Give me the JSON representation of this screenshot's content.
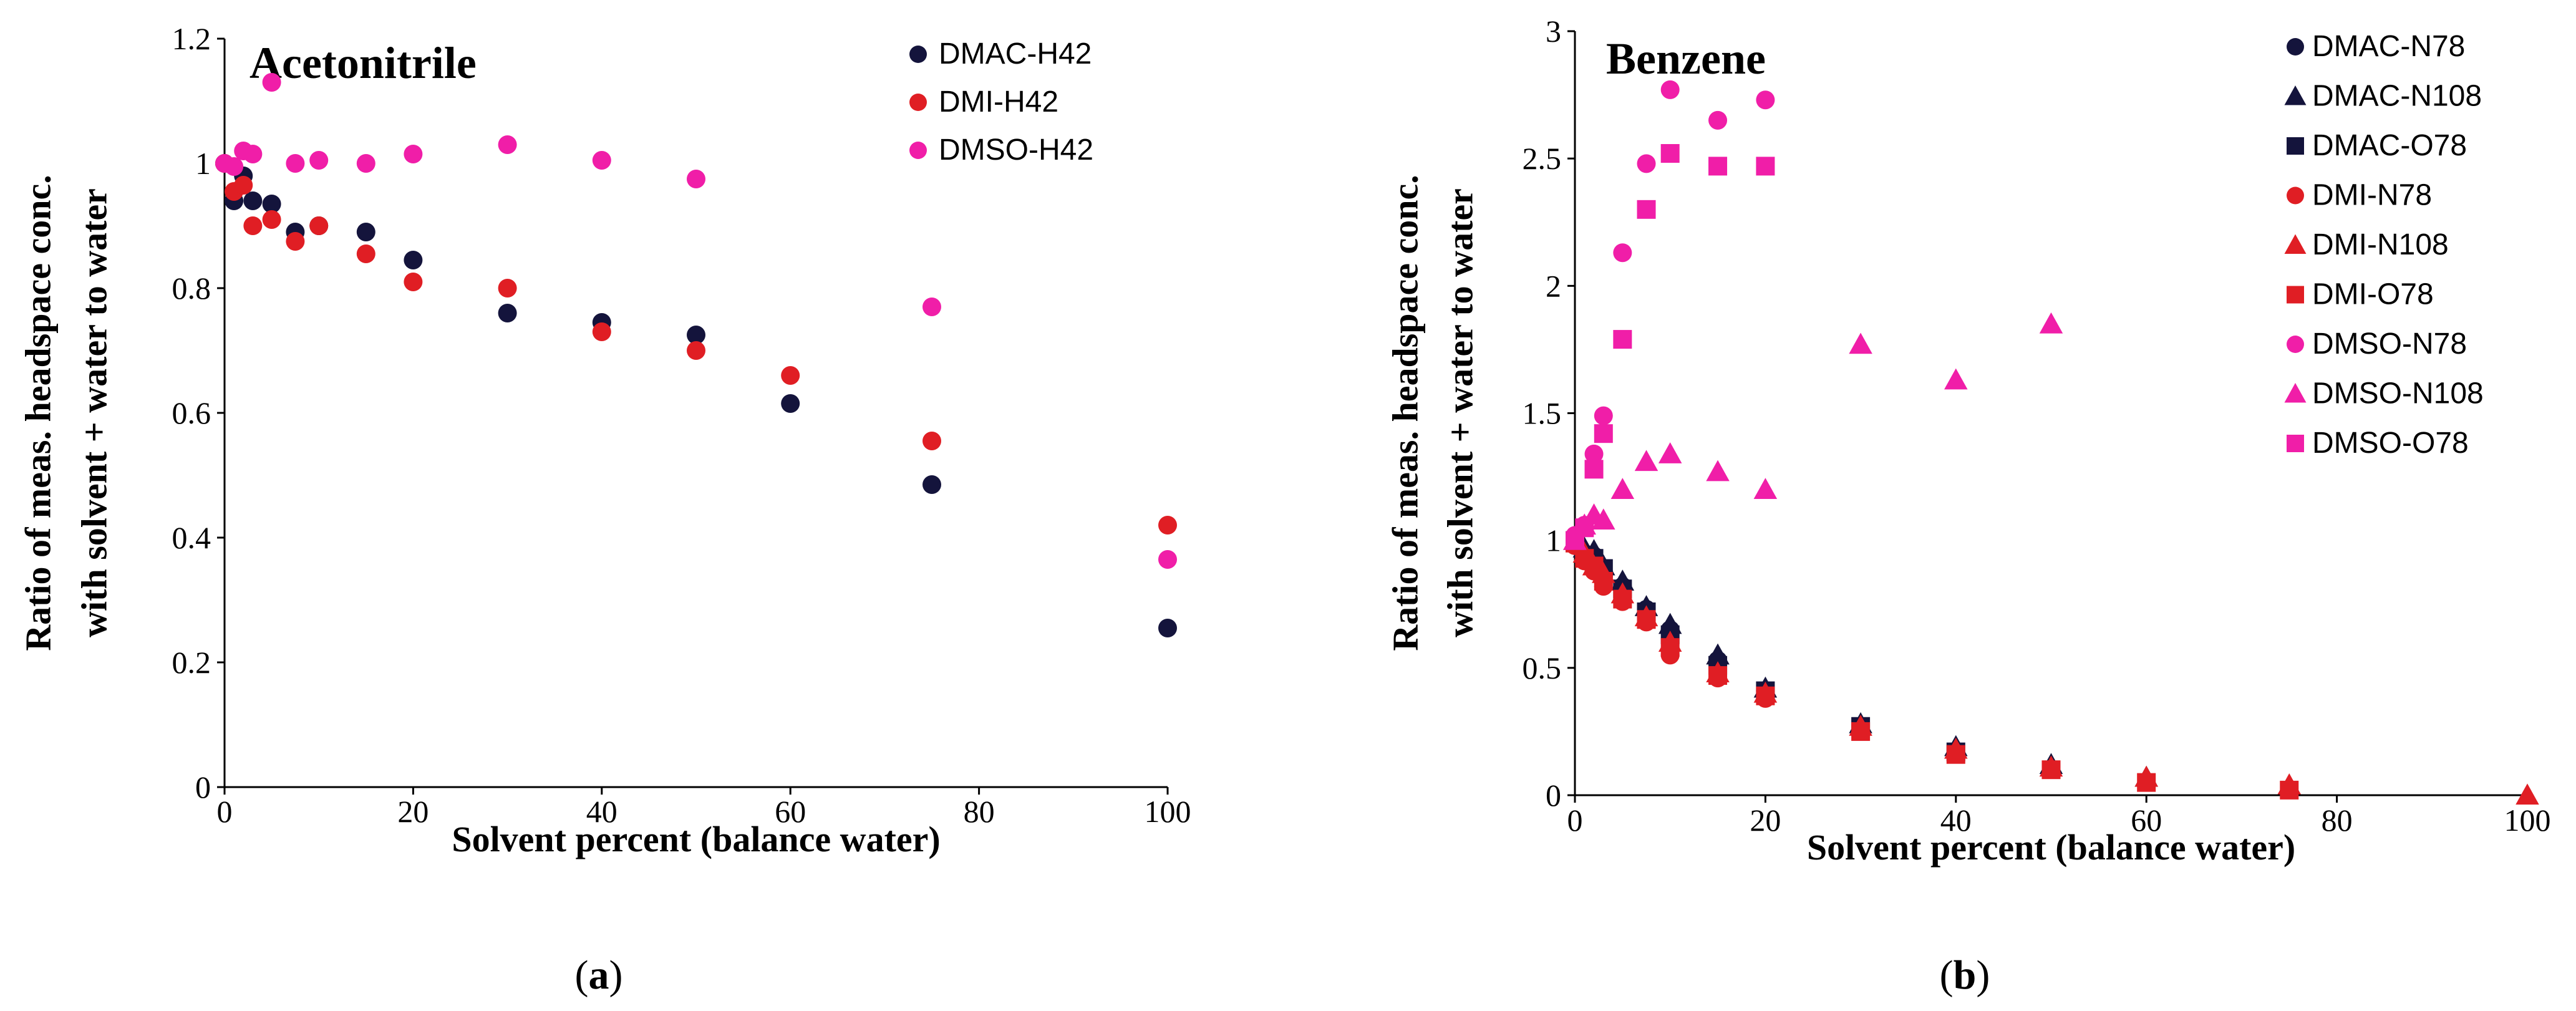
{
  "chart_data": [
    {
      "type": "scatter",
      "panel": "a",
      "title": "Acetonitrile",
      "xlabel": "Solvent percent (balance water)",
      "ylabel": [
        "Ratio of meas. headspace conc.",
        "with solvent + water to water"
      ],
      "xlim": [
        0,
        100
      ],
      "ylim": [
        0,
        1.2
      ],
      "xticks": [
        "0",
        "20",
        "40",
        "60",
        "80",
        "100"
      ],
      "yticks": [
        "0",
        "0.2",
        "0.4",
        "0.6",
        "0.8",
        "1",
        "1.2"
      ],
      "legend_position": "top-right",
      "series": [
        {
          "name": "DMAC-H42",
          "color": "#14143c",
          "marker": "circle",
          "x": [
            0,
            1,
            2,
            3,
            5,
            7.5,
            10,
            15,
            20,
            30,
            40,
            50,
            60,
            75,
            100
          ],
          "y": [
            1.0,
            0.94,
            0.98,
            0.94,
            0.935,
            0.89,
            0.9,
            0.89,
            0.845,
            0.76,
            0.745,
            0.725,
            0.615,
            0.485,
            0.255
          ]
        },
        {
          "name": "DMI-H42",
          "color": "#e01e24",
          "marker": "circle",
          "x": [
            0,
            1,
            2,
            3,
            5,
            7.5,
            10,
            15,
            20,
            30,
            40,
            50,
            60,
            75,
            100
          ],
          "y": [
            1.0,
            0.955,
            0.965,
            0.9,
            0.91,
            0.875,
            0.9,
            0.855,
            0.81,
            0.8,
            0.73,
            0.7,
            0.66,
            0.555,
            0.42
          ]
        },
        {
          "name": "DMSO-H42",
          "color": "#f01ea8",
          "marker": "circle",
          "x": [
            0,
            1,
            2,
            3,
            5,
            7.5,
            10,
            15,
            20,
            30,
            40,
            50,
            75,
            100
          ],
          "y": [
            1.0,
            0.995,
            1.02,
            1.015,
            1.13,
            1.0,
            1.005,
            1.0,
            1.015,
            1.03,
            1.005,
            0.975,
            0.77,
            0.365
          ]
        }
      ]
    },
    {
      "type": "scatter",
      "panel": "b",
      "title": "Benzene",
      "xlabel": "Solvent percent (balance water)",
      "ylabel": [
        "Ratio of meas. headspace conc.",
        "with solvent + water to water"
      ],
      "xlim": [
        0,
        100
      ],
      "ylim": [
        0,
        3
      ],
      "xticks": [
        "0",
        "20",
        "40",
        "60",
        "80",
        "100"
      ],
      "yticks": [
        "0",
        "0.5",
        "1",
        "1.5",
        "2",
        "2.5",
        "3"
      ],
      "legend_position": "top-right",
      "series": [
        {
          "name": "DMAC-N78",
          "color": "#14143c",
          "marker": "circle",
          "x": [
            0,
            1,
            2,
            3,
            5,
            7.5,
            10,
            15,
            20
          ],
          "y": [
            1.0,
            0.95,
            0.94,
            0.88,
            0.82,
            0.73,
            0.65,
            0.53,
            0.41
          ]
        },
        {
          "name": "DMAC-N108",
          "color": "#14143c",
          "marker": "triangle",
          "x": [
            0,
            1,
            2,
            3,
            5,
            7.5,
            10,
            15,
            20,
            30,
            40,
            50,
            60
          ],
          "y": [
            1.0,
            0.97,
            0.96,
            0.9,
            0.84,
            0.74,
            0.67,
            0.55,
            0.42,
            0.28,
            0.19,
            0.12,
            0.07
          ]
        },
        {
          "name": "DMAC-O78",
          "color": "#14143c",
          "marker": "square",
          "x": [
            0,
            1,
            2,
            3,
            5,
            7.5,
            10,
            15,
            20,
            30,
            40
          ],
          "y": [
            1.0,
            0.94,
            0.93,
            0.89,
            0.81,
            0.72,
            0.63,
            0.51,
            0.41,
            0.27,
            0.17
          ]
        },
        {
          "name": "DMI-N78",
          "color": "#e01e24",
          "marker": "circle",
          "x": [
            0,
            1,
            2,
            3,
            5,
            7.5,
            10,
            15,
            20
          ],
          "y": [
            0.98,
            0.92,
            0.88,
            0.82,
            0.76,
            0.68,
            0.55,
            0.46,
            0.38
          ]
        },
        {
          "name": "DMI-N108",
          "color": "#e01e24",
          "marker": "triangle",
          "x": [
            0,
            1,
            2,
            3,
            5,
            7.5,
            10,
            15,
            20,
            30,
            40,
            50,
            60,
            75,
            100
          ],
          "y": [
            1.0,
            0.95,
            0.9,
            0.87,
            0.79,
            0.7,
            0.6,
            0.48,
            0.4,
            0.27,
            0.18,
            0.11,
            0.07,
            0.04,
            0.0
          ]
        },
        {
          "name": "DMI-O78",
          "color": "#e01e24",
          "marker": "square",
          "x": [
            0,
            1,
            2,
            3,
            5,
            7.5,
            10,
            15,
            20,
            30,
            40,
            50,
            60,
            75
          ],
          "y": [
            0.99,
            0.93,
            0.9,
            0.84,
            0.77,
            0.69,
            0.58,
            0.47,
            0.39,
            0.25,
            0.16,
            0.1,
            0.05,
            0.02
          ]
        },
        {
          "name": "DMSO-N78",
          "color": "#f01ea8",
          "marker": "circle",
          "x": [
            0,
            1,
            2,
            3,
            5,
            7.5,
            10,
            15,
            20
          ],
          "y": [
            1.02,
            1.06,
            1.34,
            1.49,
            2.13,
            2.48,
            2.77,
            2.65,
            2.73
          ]
        },
        {
          "name": "DMSO-N108",
          "color": "#f01ea8",
          "marker": "triangle",
          "x": [
            0,
            1,
            2,
            3,
            5,
            7.5,
            10,
            15,
            20,
            30,
            40,
            50
          ],
          "y": [
            1.0,
            1.06,
            1.1,
            1.08,
            1.2,
            1.31,
            1.34,
            1.27,
            1.2,
            1.77,
            1.63,
            1.85
          ]
        },
        {
          "name": "DMSO-O78",
          "color": "#f01ea8",
          "marker": "square",
          "x": [
            0,
            1,
            2,
            3,
            5,
            7.5,
            10,
            15,
            20
          ],
          "y": [
            1.0,
            1.05,
            1.28,
            1.42,
            1.79,
            2.3,
            2.52,
            2.47,
            2.47
          ]
        }
      ]
    }
  ],
  "captions": {
    "a": "a",
    "b": "b"
  }
}
